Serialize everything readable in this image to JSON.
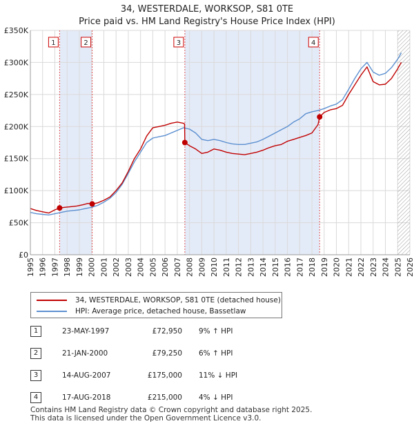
{
  "title_line1": "34, WESTERDALE, WORKSOP, S81 0TE",
  "title_line2": "Price paid vs. HM Land Registry's House Price Index (HPI)",
  "colors": {
    "property_line": "#c00000",
    "hpi_line": "#5b8fd0",
    "shade": "#e4ebf8",
    "grid": "#d9d9d9",
    "marker_box_border": "#cc0000",
    "dashed": "#e05555"
  },
  "chart_data": {
    "type": "line",
    "title": "Price paid vs. HM Land Registry's House Price Index (HPI)",
    "xlim": [
      1995,
      2026
    ],
    "ylim": [
      0,
      350000
    ],
    "y_ticks": [
      0,
      50000,
      100000,
      150000,
      200000,
      250000,
      300000,
      350000
    ],
    "y_tick_labels": [
      "£0",
      "£50K",
      "£100K",
      "£150K",
      "£200K",
      "£250K",
      "£300K",
      "£350K"
    ],
    "x_ticks": [
      1995,
      1996,
      1997,
      1998,
      1999,
      2000,
      2001,
      2002,
      2003,
      2004,
      2005,
      2006,
      2007,
      2008,
      2009,
      2010,
      2011,
      2012,
      2013,
      2014,
      2015,
      2016,
      2017,
      2018,
      2019,
      2020,
      2021,
      2022,
      2023,
      2024,
      2025,
      2026
    ],
    "x_tick_labels": [
      "1995",
      "1996",
      "1997",
      "1998",
      "1999",
      "2000",
      "2001",
      "2002",
      "2003",
      "2004",
      "2005",
      "2006",
      "2007",
      "2008",
      "2009",
      "2010",
      "2011",
      "2012",
      "2013",
      "2014",
      "2015",
      "2016",
      "2017",
      "2018",
      "2019",
      "2020",
      "2021",
      "2022",
      "2023",
      "2024",
      "2025",
      "2026"
    ],
    "shaded_ranges": [
      [
        1997.39,
        2000.05
      ],
      [
        2007.62,
        2018.63
      ]
    ],
    "forecast_start": 2025.0,
    "grid": true,
    "series": [
      {
        "name": "34, WESTERDALE, WORKSOP, S81 0TE (detached house)",
        "color": "#c00000",
        "x": [
          1995.0,
          1995.5,
          1996.0,
          1996.5,
          1997.0,
          1997.39,
          1997.8,
          1998.3,
          1998.8,
          1999.3,
          1999.7,
          2000.05,
          2000.5,
          2001.0,
          2001.5,
          2002.0,
          2002.5,
          2003.0,
          2003.5,
          2004.0,
          2004.5,
          2005.0,
          2005.5,
          2006.0,
          2006.5,
          2007.0,
          2007.5,
          2007.6,
          2007.62,
          2008.0,
          2008.5,
          2009.0,
          2009.5,
          2010.0,
          2010.5,
          2011.0,
          2011.5,
          2012.0,
          2012.5,
          2013.0,
          2013.5,
          2014.0,
          2014.5,
          2015.0,
          2015.5,
          2016.0,
          2016.5,
          2017.0,
          2017.5,
          2018.0,
          2018.5,
          2018.63,
          2019.0,
          2019.5,
          2020.0,
          2020.5,
          2021.0,
          2021.5,
          2022.0,
          2022.5,
          2023.0,
          2023.5,
          2024.0,
          2024.5,
          2025.0,
          2025.3
        ],
        "values": [
          72000,
          69000,
          67000,
          65000,
          70000,
          72950,
          74000,
          75000,
          76000,
          78000,
          80000,
          79250,
          81000,
          85000,
          90000,
          100000,
          112000,
          130000,
          150000,
          165000,
          185000,
          198000,
          200000,
          202000,
          205000,
          207000,
          205000,
          204000,
          175000,
          170000,
          165000,
          158000,
          160000,
          165000,
          163000,
          160000,
          158000,
          157000,
          156000,
          158000,
          160000,
          163000,
          167000,
          170000,
          172000,
          177000,
          180000,
          183000,
          186000,
          190000,
          203000,
          215000,
          222000,
          226000,
          228000,
          233000,
          250000,
          265000,
          280000,
          293000,
          270000,
          265000,
          266000,
          275000,
          290000,
          300000
        ]
      },
      {
        "name": "HPI: Average price, detached house, Bassetlaw",
        "color": "#5b8fd0",
        "x": [
          1995.0,
          1995.5,
          1996.0,
          1996.5,
          1997.0,
          1997.5,
          1998.0,
          1998.5,
          1999.0,
          1999.5,
          2000.0,
          2000.5,
          2001.0,
          2001.5,
          2002.0,
          2002.5,
          2003.0,
          2003.5,
          2004.0,
          2004.5,
          2005.0,
          2005.5,
          2006.0,
          2006.5,
          2007.0,
          2007.5,
          2008.0,
          2008.5,
          2009.0,
          2009.5,
          2010.0,
          2010.5,
          2011.0,
          2011.5,
          2012.0,
          2012.5,
          2013.0,
          2013.5,
          2014.0,
          2014.5,
          2015.0,
          2015.5,
          2016.0,
          2016.5,
          2017.0,
          2017.5,
          2018.0,
          2018.5,
          2019.0,
          2019.5,
          2020.0,
          2020.5,
          2021.0,
          2021.5,
          2022.0,
          2022.5,
          2023.0,
          2023.5,
          2024.0,
          2024.5,
          2025.0,
          2025.3
        ],
        "values": [
          66000,
          64000,
          63000,
          62000,
          64000,
          66000,
          68000,
          69000,
          70000,
          72000,
          74000,
          77000,
          82000,
          88000,
          97000,
          110000,
          127000,
          145000,
          160000,
          175000,
          182000,
          184000,
          186000,
          190000,
          194000,
          198000,
          196000,
          190000,
          180000,
          178000,
          180000,
          178000,
          175000,
          173000,
          172000,
          172000,
          174000,
          176000,
          180000,
          185000,
          190000,
          195000,
          200000,
          207000,
          212000,
          220000,
          223000,
          225000,
          228000,
          232000,
          235000,
          242000,
          258000,
          275000,
          290000,
          300000,
          285000,
          280000,
          283000,
          292000,
          305000,
          315000
        ]
      }
    ],
    "transactions": [
      {
        "num": "1",
        "year": 1997.39,
        "price": 72950
      },
      {
        "num": "2",
        "year": 2000.05,
        "price": 79250
      },
      {
        "num": "3",
        "year": 2007.62,
        "price": 175000
      },
      {
        "num": "4",
        "year": 2018.63,
        "price": 215000
      }
    ]
  },
  "legend": {
    "items": [
      {
        "label": "34, WESTERDALE, WORKSOP, S81 0TE (detached house)",
        "color": "#c00000"
      },
      {
        "label": "HPI: Average price, detached house, Bassetlaw",
        "color": "#5b8fd0"
      }
    ]
  },
  "table": {
    "rows": [
      {
        "num": "1",
        "date": "23-MAY-1997",
        "price": "£72,950",
        "hpi": "9% ↑ HPI"
      },
      {
        "num": "2",
        "date": "21-JAN-2000",
        "price": "£79,250",
        "hpi": "6% ↑ HPI"
      },
      {
        "num": "3",
        "date": "14-AUG-2007",
        "price": "£175,000",
        "hpi": "11% ↓ HPI"
      },
      {
        "num": "4",
        "date": "17-AUG-2018",
        "price": "£215,000",
        "hpi": "4% ↓ HPI"
      }
    ]
  },
  "footer": {
    "line1": "Contains HM Land Registry data © Crown copyright and database right 2025.",
    "line2": "This data is licensed under the Open Government Licence v3.0."
  }
}
